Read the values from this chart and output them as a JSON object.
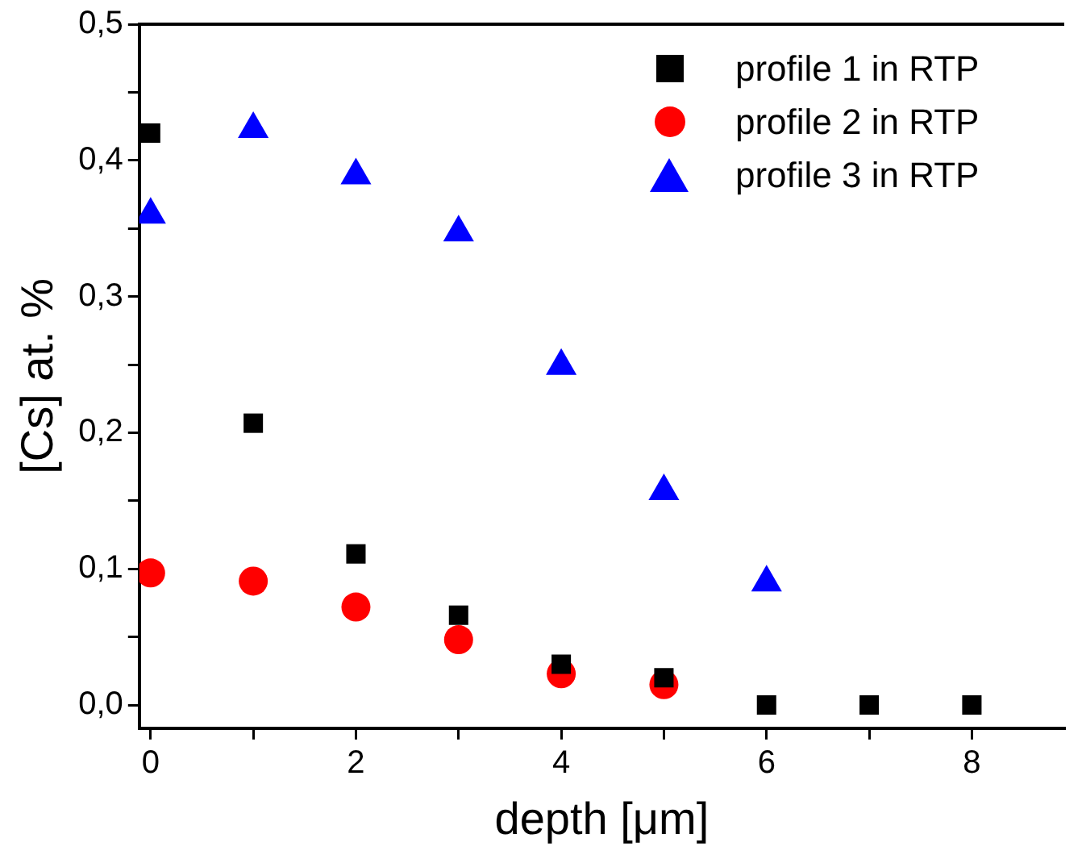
{
  "chart_data": {
    "type": "scatter",
    "xlabel": "depth [μm]",
    "ylabel": "[Cs] at. %",
    "xlim": [
      -0.11,
      8.9
    ],
    "ylim": [
      -0.017,
      0.5
    ],
    "xticks": [
      0,
      {
        "value": 1,
        "label": null
      },
      2,
      {
        "value": 3,
        "label": null
      },
      4,
      {
        "value": 5,
        "label": null
      },
      6,
      {
        "value": 7,
        "label": null
      },
      8
    ],
    "yticks": [
      {
        "value": 0,
        "label": "0,0"
      },
      {
        "value": 0.05,
        "label": null
      },
      {
        "value": 0.1,
        "label": "0,1"
      },
      {
        "value": 0.15,
        "label": null
      },
      {
        "value": 0.2,
        "label": "0,2"
      },
      {
        "value": 0.25,
        "label": null
      },
      {
        "value": 0.3,
        "label": "0,3"
      },
      {
        "value": 0.35,
        "label": null
      },
      {
        "value": 0.4,
        "label": "0,4"
      },
      {
        "value": 0.45,
        "label": null
      },
      {
        "value": 0.5,
        "label": "0,5"
      }
    ],
    "grid": false,
    "legend": "top right",
    "series": [
      {
        "name": "profile 1 in RTP",
        "color": "#000000",
        "marker": "square",
        "x": [
          0,
          1,
          2,
          3,
          4,
          5,
          6,
          7,
          8
        ],
        "values": [
          0.42,
          0.207,
          0.111,
          0.066,
          0.03,
          0.02,
          0,
          0,
          0
        ]
      },
      {
        "name": "profile 2 in RTP",
        "color": "#ff0000",
        "marker": "circle",
        "x": [
          0,
          1,
          2,
          3,
          4,
          5
        ],
        "values": [
          0.097,
          0.091,
          0.072,
          0.048,
          0.023,
          0.015
        ]
      },
      {
        "name": "profile 3 in RTP",
        "color": "#0000ff",
        "marker": "triangle",
        "x": [
          0,
          1,
          2,
          3,
          4,
          5,
          6
        ],
        "values": [
          0.36,
          0.423,
          0.389,
          0.347,
          0.249,
          0.157,
          0.09
        ]
      }
    ]
  }
}
